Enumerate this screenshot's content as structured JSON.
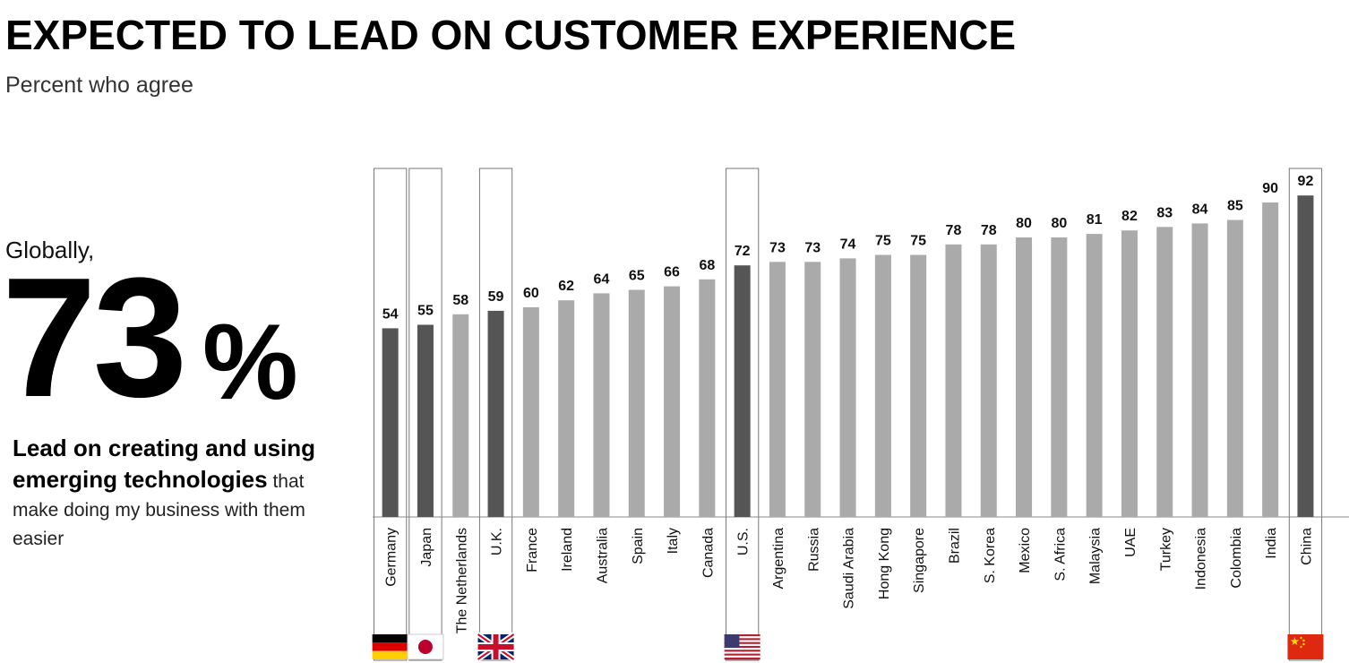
{
  "title": "EXPECTED TO LEAD ON CUSTOMER EXPERIENCE",
  "subtitle": "Percent who agree",
  "summary": {
    "prefix": "Globally,",
    "value": "73",
    "unit": "%",
    "bold_text": "Lead on creating and using emerging technologies",
    "text_after_bold": " that",
    "rest_text": "make doing my business with them easier"
  },
  "colors": {
    "highlight": "#555555",
    "default": "#aaaaaa",
    "text": "#111111"
  },
  "chart_data": {
    "type": "bar",
    "categories": [
      "Germany",
      "Japan",
      "The Netherlands",
      "U.K.",
      "France",
      "Ireland",
      "Australia",
      "Spain",
      "Italy",
      "Canada",
      "U.S.",
      "Argentina",
      "Russia",
      "Saudi Arabia",
      "Hong Kong",
      "Singapore",
      "Brazil",
      "S. Korea",
      "Mexico",
      "S. Africa",
      "Malaysia",
      "UAE",
      "Turkey",
      "Indonesia",
      "Colombia",
      "India",
      "China"
    ],
    "values": [
      54,
      55,
      58,
      59,
      60,
      62,
      64,
      65,
      66,
      68,
      72,
      73,
      73,
      74,
      75,
      75,
      78,
      78,
      80,
      80,
      81,
      82,
      83,
      84,
      85,
      90,
      92
    ],
    "value_labels": [
      "54",
      "55",
      "58",
      "59",
      "60",
      "62",
      "64",
      "65",
      "66",
      "68",
      "72",
      "73",
      "73",
      "74",
      "75",
      "75",
      "78",
      "78",
      "80",
      "80",
      "81",
      "82",
      "83",
      "84",
      "85",
      "90",
      "92"
    ],
    "highlighted": [
      "Germany",
      "Japan",
      "U.K.",
      "U.S.",
      "China"
    ],
    "flags": {
      "Germany": "germany-flag",
      "Japan": "japan-flag",
      "U.K.": "uk-flag",
      "U.S.": "us-flag",
      "China": "china-flag"
    },
    "ylim": [
      0,
      100
    ],
    "grid": false
  }
}
